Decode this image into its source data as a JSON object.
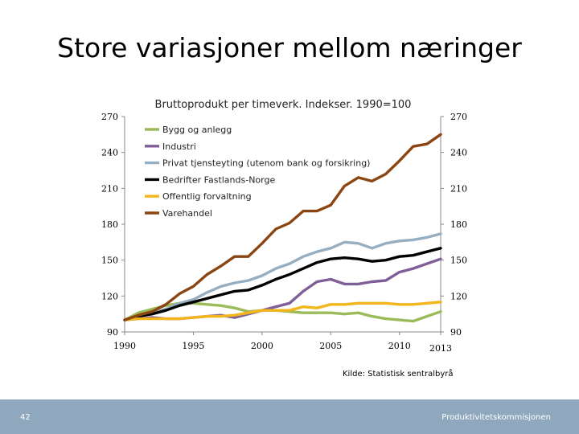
{
  "slide": {
    "title": "Store variasjoner mellom næringer",
    "source": "Kilde: Statistisk sentralbyrå",
    "page_number": "42",
    "footer_brand": "Produktivitetskommisjonen"
  },
  "colors": {
    "footer": "#8fa8be"
  },
  "chart_data": {
    "type": "line",
    "title": "Bruttoprodukt per timeverk. Indekser. 1990=100",
    "xlabel": "",
    "ylabel": "",
    "xlim": [
      1990,
      2013
    ],
    "ylim": [
      90,
      270
    ],
    "yticks": [
      90,
      120,
      150,
      180,
      210,
      240,
      270
    ],
    "xticks": [
      "1990",
      "1995",
      "2000",
      "2005",
      "2010",
      "2013"
    ],
    "grid": false,
    "legend_position": "top-left",
    "x": [
      1990,
      1991,
      1992,
      1993,
      1994,
      1995,
      1996,
      1997,
      1998,
      1999,
      2000,
      2001,
      2002,
      2003,
      2004,
      2005,
      2006,
      2007,
      2008,
      2009,
      2010,
      2011,
      2012,
      2013
    ],
    "series": [
      {
        "name": "Bygg og anlegg",
        "color": "#9bbb59",
        "values": [
          100,
          106,
          109,
          112,
          114,
          114,
          113,
          112,
          110,
          107,
          108,
          108,
          107,
          106,
          106,
          106,
          105,
          106,
          103,
          101,
          100,
          99,
          103,
          107
        ]
      },
      {
        "name": "Industri",
        "color": "#7f5f97",
        "values": [
          100,
          101,
          102,
          101,
          101,
          102,
          103,
          104,
          102,
          105,
          108,
          111,
          114,
          124,
          132,
          134,
          130,
          130,
          132,
          133,
          140,
          143,
          147,
          151
        ]
      },
      {
        "name": "Privat tjensteyting (utenom bank og forsikring)",
        "color": "#95aec2",
        "values": [
          100,
          103,
          106,
          109,
          114,
          117,
          123,
          128,
          131,
          133,
          137,
          143,
          147,
          153,
          157,
          160,
          165,
          164,
          160,
          164,
          166,
          167,
          169,
          172
        ]
      },
      {
        "name": "Bedrifter Fastlands-Norge",
        "color": "#000000",
        "values": [
          100,
          103,
          105,
          108,
          112,
          115,
          118,
          121,
          124,
          125,
          129,
          134,
          138,
          143,
          148,
          151,
          152,
          151,
          149,
          150,
          153,
          154,
          157,
          160
        ]
      },
      {
        "name": "Offentlig forvaltning",
        "color": "#f2b51b",
        "values": [
          100,
          101,
          101,
          101,
          101,
          102,
          103,
          103,
          104,
          106,
          108,
          108,
          108,
          111,
          110,
          113,
          113,
          114,
          114,
          114,
          113,
          113,
          114,
          115
        ]
      },
      {
        "name": "Varehandel",
        "color": "#8b4513",
        "values": [
          100,
          104,
          107,
          113,
          122,
          128,
          138,
          145,
          153,
          153,
          164,
          176,
          181,
          191,
          191,
          196,
          212,
          219,
          216,
          222,
          233,
          245,
          247,
          255
        ]
      }
    ]
  }
}
